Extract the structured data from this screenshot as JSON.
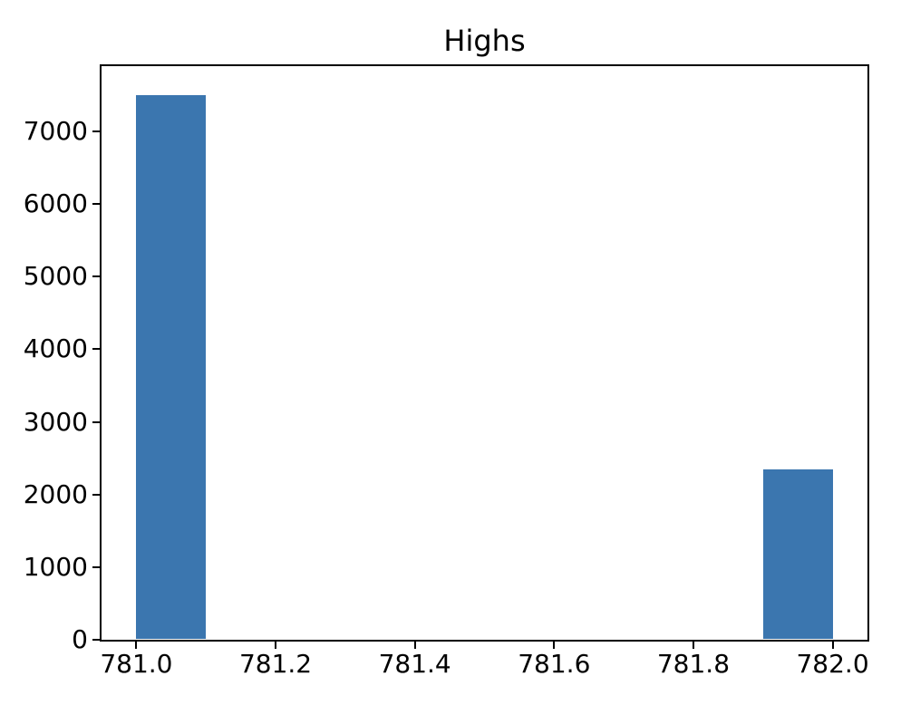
{
  "figure": {
    "background_color": "#ffffff",
    "spine_color": "#000000",
    "text_color": "#000000"
  },
  "chart_data": {
    "type": "bar",
    "chart_kind": "histogram",
    "title": "Highs",
    "xlabel": "",
    "ylabel": "",
    "bar_color": "#3b76af",
    "bin_edges": [
      781.0,
      781.1,
      781.2,
      781.3,
      781.4,
      781.5,
      781.6,
      781.7,
      781.8,
      781.9,
      782.0
    ],
    "counts": [
      7500,
      0,
      0,
      0,
      0,
      0,
      0,
      0,
      0,
      2350
    ],
    "xlim": [
      780.95,
      782.05
    ],
    "ylim": [
      0,
      7900
    ],
    "xticks": {
      "values": [
        781.0,
        781.2,
        781.4,
        781.6,
        781.8,
        782.0
      ],
      "labels": [
        "781.0",
        "781.2",
        "781.4",
        "781.6",
        "781.8",
        "782.0"
      ]
    },
    "yticks": {
      "values": [
        0,
        1000,
        2000,
        3000,
        4000,
        5000,
        6000,
        7000
      ],
      "labels": [
        "0",
        "1000",
        "2000",
        "3000",
        "4000",
        "5000",
        "6000",
        "7000"
      ]
    },
    "grid": false,
    "legend": null
  }
}
